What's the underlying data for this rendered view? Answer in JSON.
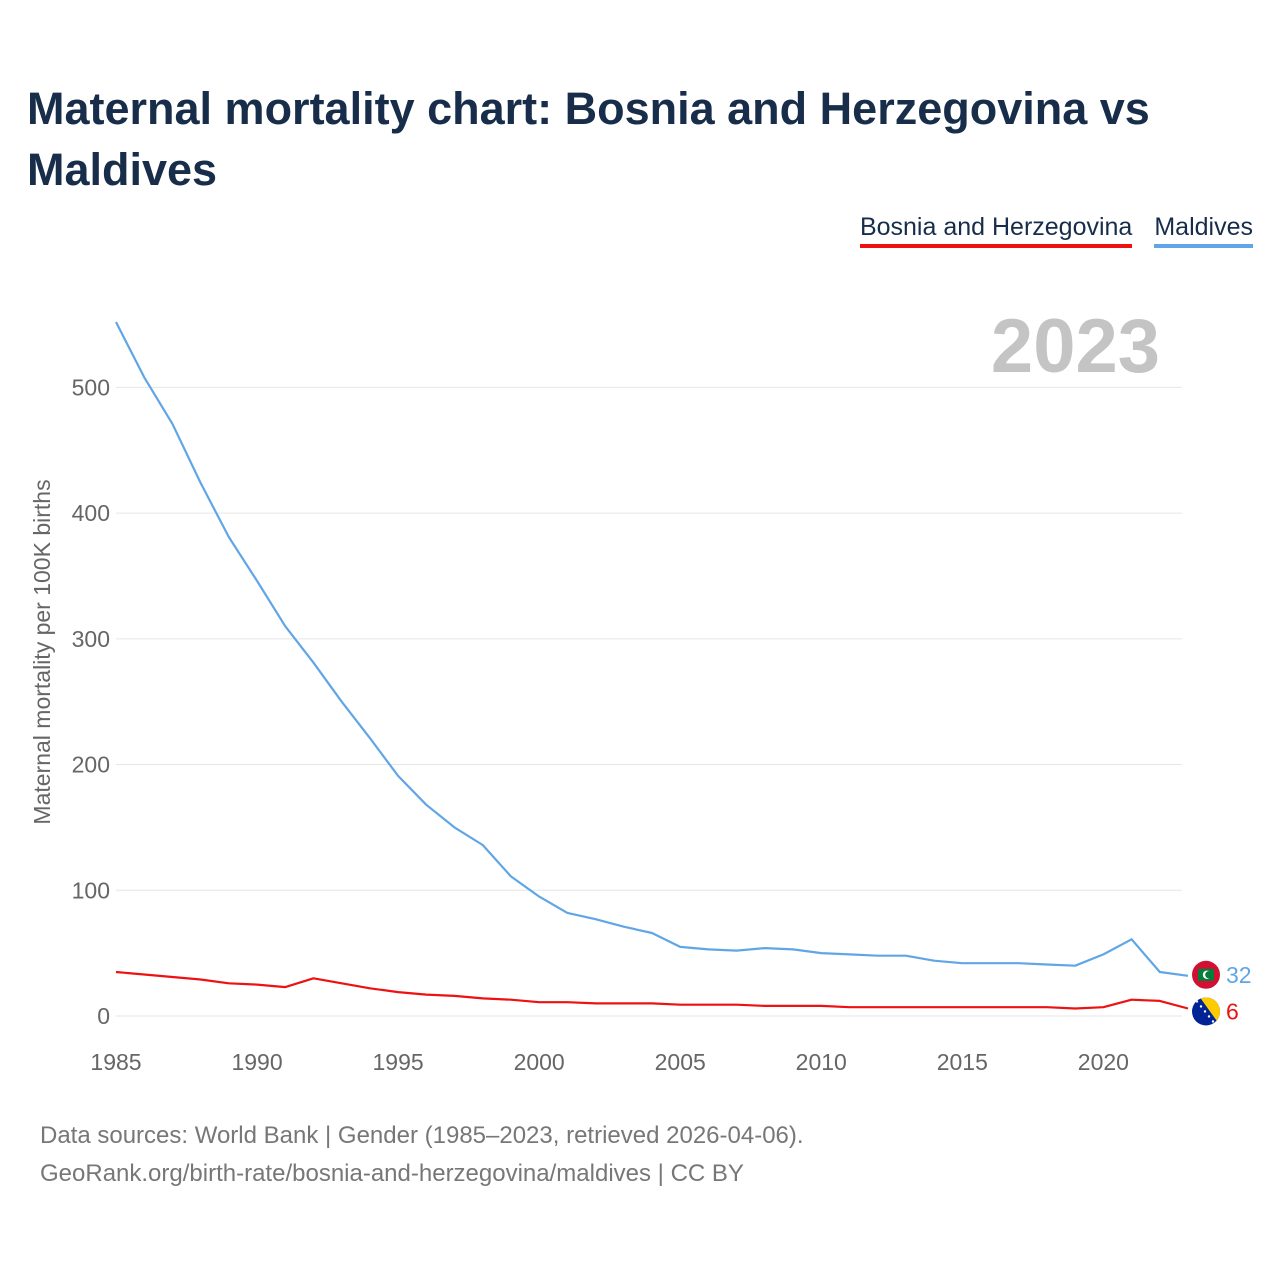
{
  "title": "Maternal mortality chart: Bosnia and Herzegovina vs Maldives",
  "highlight_year": "2023",
  "footer": {
    "line1": "Data sources: World Bank | Gender (1985–2023, retrieved 2026-04-06).",
    "line2": "GeoRank.org/birth-rate/bosnia-and-herzegovina/maldives | CC BY"
  },
  "colors": {
    "bosnia": "#ee1111",
    "maldives": "#60a6e6",
    "title": "#172d4a",
    "grid": "#e6e6e6"
  },
  "chart_data": {
    "type": "line",
    "title": "Maternal mortality chart: Bosnia and Herzegovina vs Maldives",
    "xlabel": "",
    "ylabel": "Maternal mortality per 100K births",
    "xlim": [
      1985,
      2023
    ],
    "ylim": [
      0,
      550
    ],
    "x_ticks": [
      1985,
      1990,
      1995,
      2000,
      2005,
      2010,
      2015,
      2020
    ],
    "y_ticks": [
      0,
      100,
      200,
      300,
      400,
      500
    ],
    "legend_position": "top-right",
    "x": [
      1985,
      1986,
      1987,
      1988,
      1989,
      1990,
      1991,
      1992,
      1993,
      1994,
      1995,
      1996,
      1997,
      1998,
      1999,
      2000,
      2001,
      2002,
      2003,
      2004,
      2005,
      2006,
      2007,
      2008,
      2009,
      2010,
      2011,
      2012,
      2013,
      2014,
      2015,
      2016,
      2017,
      2018,
      2019,
      2020,
      2021,
      2022,
      2023
    ],
    "series": [
      {
        "name": "Bosnia and Herzegovina",
        "key": "bosnia",
        "end_label": "6",
        "values": [
          35,
          33,
          31,
          29,
          26,
          25,
          23,
          30,
          26,
          22,
          19,
          17,
          16,
          14,
          13,
          11,
          11,
          10,
          10,
          10,
          9,
          9,
          9,
          8,
          8,
          8,
          7,
          7,
          7,
          7,
          7,
          7,
          7,
          7,
          6,
          7,
          13,
          12,
          6
        ]
      },
      {
        "name": "Maldives",
        "key": "maldives",
        "end_label": "32",
        "values": [
          552,
          508,
          471,
          424,
          381,
          346,
          310,
          281,
          250,
          221,
          191,
          168,
          150,
          136,
          111,
          95,
          82,
          77,
          71,
          66,
          55,
          53,
          52,
          54,
          53,
          50,
          49,
          48,
          48,
          44,
          42,
          42,
          42,
          41,
          40,
          49,
          61,
          35,
          32
        ]
      }
    ]
  }
}
